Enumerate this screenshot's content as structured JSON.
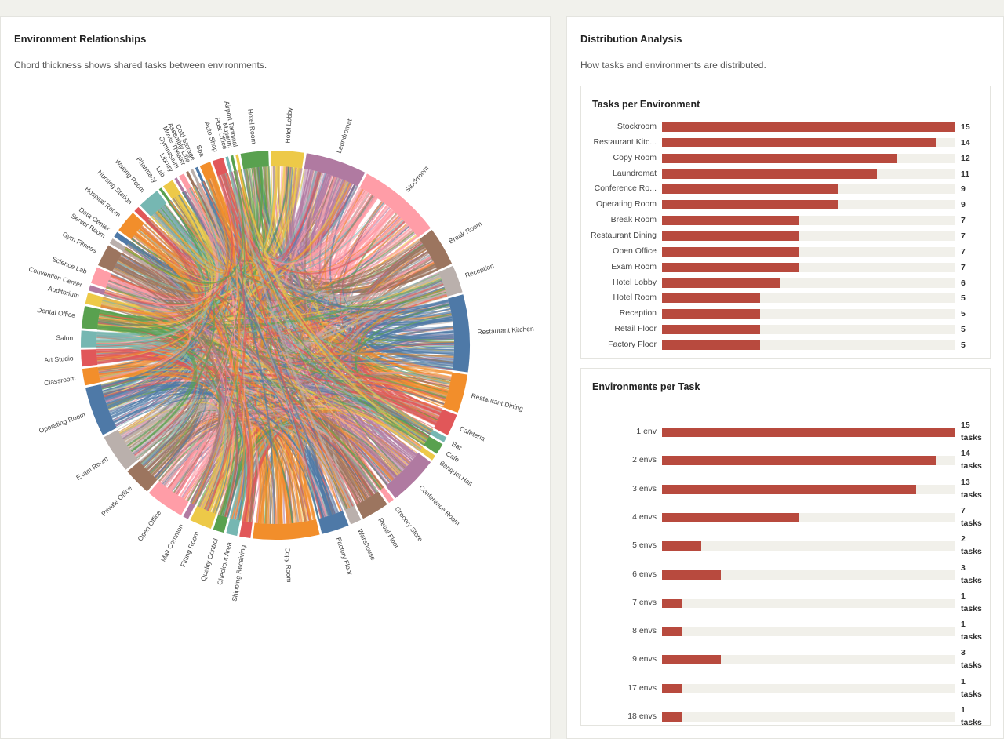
{
  "left_card": {
    "title": "Environment Relationships",
    "subtitle": "Chord thickness shows shared tasks between environments."
  },
  "right_card": {
    "title": "Distribution Analysis",
    "subtitle": "How tasks and environments are distributed."
  },
  "chart_data": [
    {
      "type": "chord",
      "environments": [
        {
          "name": "Hotel Room",
          "color": "#59a14f",
          "weight": 5
        },
        {
          "name": "Hotel Lobby",
          "color": "#edc948",
          "weight": 6
        },
        {
          "name": "Laundromat",
          "color": "#b07aa1",
          "weight": 11
        },
        {
          "name": "Stockroom",
          "color": "#ff9da7",
          "weight": 15
        },
        {
          "name": "Break Room",
          "color": "#9c755f",
          "weight": 7
        },
        {
          "name": "Reception",
          "color": "#bab0ac",
          "weight": 5
        },
        {
          "name": "Restaurant Kitchen",
          "color": "#4e79a7",
          "weight": 14
        },
        {
          "name": "Restaurant Dining",
          "color": "#f28e2b",
          "weight": 7
        },
        {
          "name": "Cafeteria",
          "color": "#e15759",
          "weight": 4
        },
        {
          "name": "Bar",
          "color": "#76b7b2",
          "weight": 1
        },
        {
          "name": "Cafe",
          "color": "#59a14f",
          "weight": 2
        },
        {
          "name": "Banquet Hall",
          "color": "#edc948",
          "weight": 1
        },
        {
          "name": "Conference Room",
          "color": "#b07aa1",
          "weight": 9
        },
        {
          "name": "Grocery Store",
          "color": "#ff9da7",
          "weight": 1
        },
        {
          "name": "Retail Floor",
          "color": "#9c755f",
          "weight": 5
        },
        {
          "name": "Warehouse",
          "color": "#bab0ac",
          "weight": 2
        },
        {
          "name": "Factory Floor",
          "color": "#4e79a7",
          "weight": 5
        },
        {
          "name": "Copy Room",
          "color": "#f28e2b",
          "weight": 12
        },
        {
          "name": "Shipping Receiving",
          "color": "#e15759",
          "weight": 2
        },
        {
          "name": "Checkout Area",
          "color": "#76b7b2",
          "weight": 2
        },
        {
          "name": "Quality Control",
          "color": "#59a14f",
          "weight": 2
        },
        {
          "name": "Fitting Room",
          "color": "#edc948",
          "weight": 4
        },
        {
          "name": "Mail Common",
          "color": "#b07aa1",
          "weight": 1
        },
        {
          "name": "Open Office",
          "color": "#ff9da7",
          "weight": 7
        },
        {
          "name": "Private Office",
          "color": "#9c755f",
          "weight": 5
        },
        {
          "name": "Exam Room",
          "color": "#bab0ac",
          "weight": 7
        },
        {
          "name": "Operating Room",
          "color": "#4e79a7",
          "weight": 9
        },
        {
          "name": "Classroom",
          "color": "#f28e2b",
          "weight": 3
        },
        {
          "name": "Art Studio",
          "color": "#e15759",
          "weight": 3
        },
        {
          "name": "Salon",
          "color": "#76b7b2",
          "weight": 3
        },
        {
          "name": "Dental Office",
          "color": "#59a14f",
          "weight": 4
        },
        {
          "name": "Auditorium",
          "color": "#edc948",
          "weight": 2
        },
        {
          "name": "Convention Center",
          "color": "#b07aa1",
          "weight": 1
        },
        {
          "name": "Science Lab",
          "color": "#ff9da7",
          "weight": 3
        },
        {
          "name": "Gym Fitness",
          "color": "#9c755f",
          "weight": 4
        },
        {
          "name": "Server Room",
          "color": "#bab0ac",
          "weight": 1
        },
        {
          "name": "Data Center",
          "color": "#4e79a7",
          "weight": 1
        },
        {
          "name": "Hospital Room",
          "color": "#f28e2b",
          "weight": 4
        },
        {
          "name": "Nursing Station",
          "color": "#e15759",
          "weight": 1
        },
        {
          "name": "Waiting Room",
          "color": "#76b7b2",
          "weight": 4
        },
        {
          "name": "Pharmacy",
          "color": "#59a14f",
          "weight": 0.5
        },
        {
          "name": "Lab",
          "color": "#edc948",
          "weight": 2
        },
        {
          "name": "Library",
          "color": "#b07aa1",
          "weight": 0.5
        },
        {
          "name": "Gymnasium",
          "color": "#ff9da7",
          "weight": 1
        },
        {
          "name": "Movie Theater",
          "color": "#9c755f",
          "weight": 0.5
        },
        {
          "name": "Assembly Line",
          "color": "#bab0ac",
          "weight": 0.5
        },
        {
          "name": "Cold Storage",
          "color": "#4e79a7",
          "weight": 0.5
        },
        {
          "name": "Spa",
          "color": "#f28e2b",
          "weight": 2
        },
        {
          "name": "Auto Shop",
          "color": "#e15759",
          "weight": 2
        },
        {
          "name": "Post Office",
          "color": "#76b7b2",
          "weight": 0.5
        },
        {
          "name": "Museum",
          "color": "#59a14f",
          "weight": 0.5
        },
        {
          "name": "Airport Terminal",
          "color": "#edc948",
          "weight": 0.5
        }
      ]
    },
    {
      "type": "bar",
      "title": "Tasks per Environment",
      "orientation": "horizontal",
      "categories": [
        "Stockroom",
        "Restaurant Kitc...",
        "Copy Room",
        "Laundromat",
        "Conference Ro...",
        "Operating Room",
        "Break Room",
        "Restaurant Dining",
        "Open Office",
        "Exam Room",
        "Hotel Lobby",
        "Hotel Room",
        "Reception",
        "Retail Floor",
        "Factory Floor"
      ],
      "values": [
        15,
        14,
        12,
        11,
        9,
        9,
        7,
        7,
        7,
        7,
        6,
        5,
        5,
        5,
        5
      ],
      "xlim": [
        0,
        15
      ],
      "color": "#b84a3e"
    },
    {
      "type": "bar",
      "title": "Environments per Task",
      "orientation": "horizontal",
      "categories": [
        "1 env",
        "2 envs",
        "3 envs",
        "4 envs",
        "5 envs",
        "6 envs",
        "7 envs",
        "8 envs",
        "9 envs",
        "17 envs",
        "18 envs"
      ],
      "values": [
        15,
        14,
        13,
        7,
        2,
        3,
        1,
        1,
        3,
        1,
        1
      ],
      "value_suffix": "tasks",
      "xlim": [
        0,
        15
      ],
      "color": "#b84a3e"
    }
  ]
}
